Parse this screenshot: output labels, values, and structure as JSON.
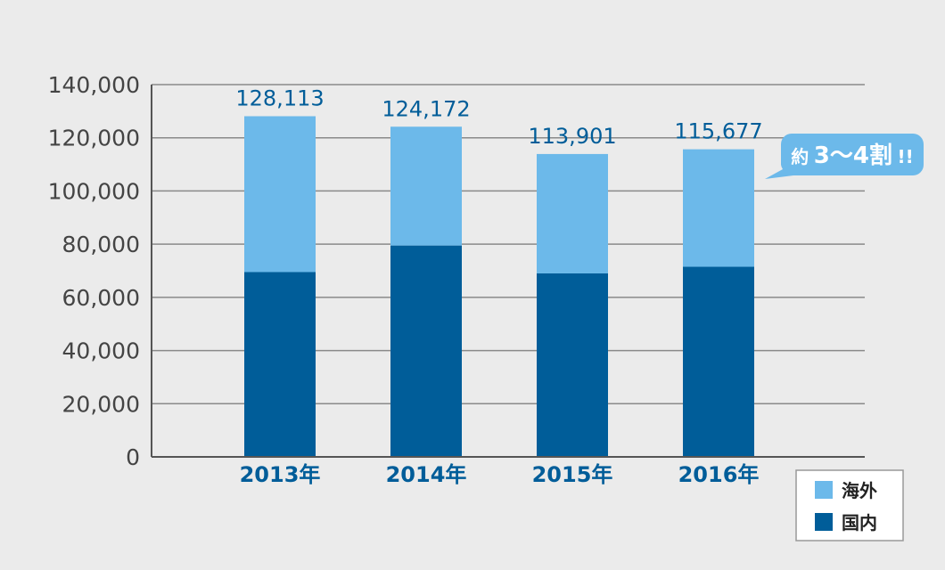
{
  "colors": {
    "background": "#ebebeb",
    "overseas": "#6cb9ea",
    "domestic": "#005d99",
    "axis_text": "#444444",
    "category_text": "#005d99",
    "gridline": "#8a8a8a"
  },
  "callout": {
    "prefix": "約",
    "main": "3～4割",
    "suffix": "!!"
  },
  "chart_data": {
    "type": "bar",
    "stacked": true,
    "categories": [
      "2013年",
      "2014年",
      "2015年",
      "2016年"
    ],
    "series": [
      {
        "name": "国内",
        "values": [
          69500,
          79500,
          69000,
          71500
        ]
      },
      {
        "name": "海外",
        "values": [
          58613,
          44672,
          44901,
          44177
        ]
      }
    ],
    "totals": [
      128113,
      124172,
      113901,
      115677
    ],
    "total_labels": [
      "128,113",
      "124,172",
      "113,901",
      "115,677"
    ],
    "y_ticks": [
      "0",
      "20,000",
      "40,000",
      "60,000",
      "80,000",
      "100,000",
      "120,000",
      "140,000"
    ],
    "ylim": [
      0,
      140000
    ],
    "grid": true,
    "legend": {
      "position": "bottom-right",
      "entries": [
        "海外",
        "国内"
      ]
    }
  }
}
